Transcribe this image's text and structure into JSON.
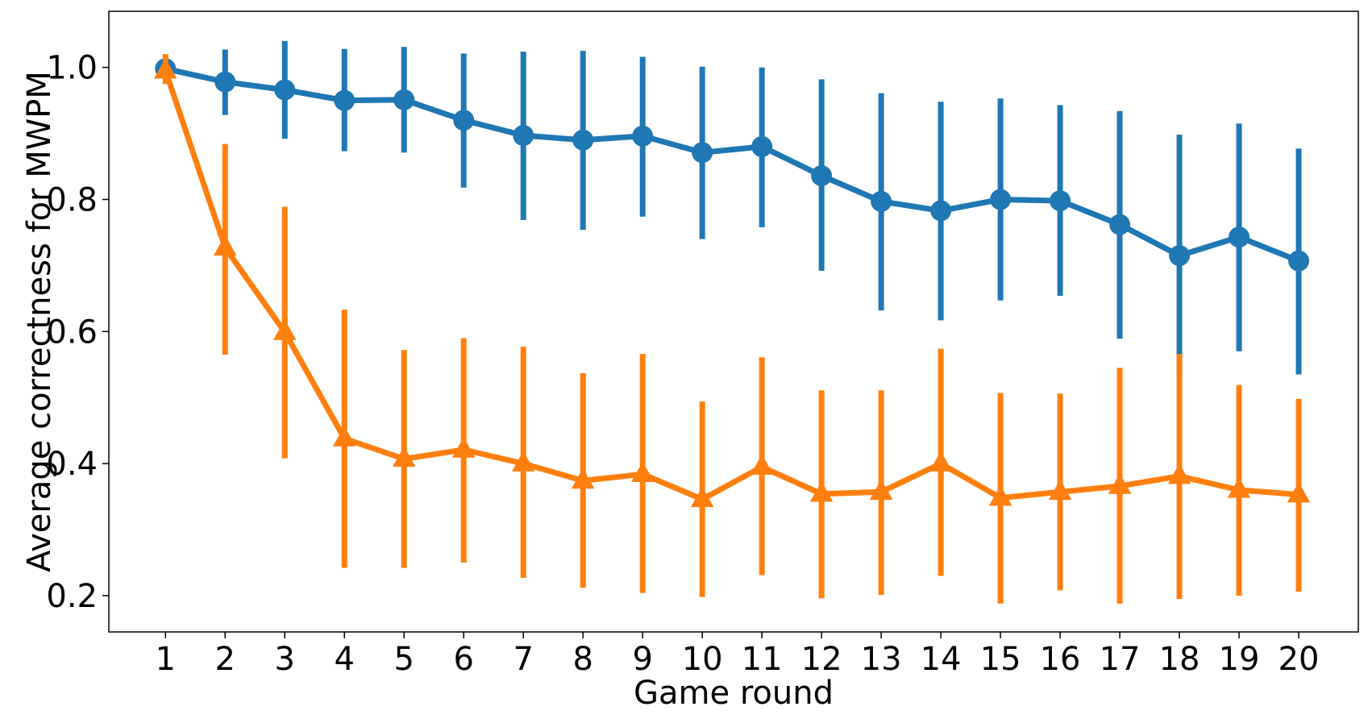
{
  "chart_data": {
    "type": "line",
    "title": "",
    "xlabel": "Game round",
    "ylabel": "Average correctness for MWPM",
    "x": [
      1,
      2,
      3,
      4,
      5,
      6,
      7,
      8,
      9,
      10,
      11,
      12,
      13,
      14,
      15,
      16,
      17,
      18,
      19,
      20
    ],
    "xlim": [
      0.05,
      21.0
    ],
    "ylim": [
      0.145,
      1.085
    ],
    "yticks": [
      0.2,
      0.4,
      0.6,
      0.8,
      1.0
    ],
    "ytick_labels": [
      "0.2",
      "0.4",
      "0.6",
      "0.8",
      "1.0"
    ],
    "grid": false,
    "legend": "none",
    "series": [
      {
        "color": "#1f77b4",
        "marker": "circle",
        "values": [
          0.998,
          0.978,
          0.966,
          0.95,
          0.951,
          0.92,
          0.897,
          0.89,
          0.896,
          0.871,
          0.88,
          0.836,
          0.797,
          0.783,
          0.8,
          0.798,
          0.762,
          0.715,
          0.743,
          0.707
        ],
        "err_low": [
          0.998,
          0.928,
          0.892,
          0.873,
          0.871,
          0.818,
          0.769,
          0.754,
          0.774,
          0.74,
          0.758,
          0.692,
          0.632,
          0.617,
          0.647,
          0.654,
          0.589,
          0.539,
          0.57,
          0.535
        ],
        "err_high": [
          0.998,
          1.027,
          1.04,
          1.028,
          1.031,
          1.021,
          1.024,
          1.025,
          1.016,
          1.001,
          1.0,
          0.982,
          0.961,
          0.948,
          0.953,
          0.943,
          0.934,
          0.898,
          0.915,
          0.877
        ]
      },
      {
        "color": "#ff7f0e",
        "marker": "triangle",
        "values": [
          0.995,
          0.727,
          0.599,
          0.438,
          0.407,
          0.421,
          0.4,
          0.374,
          0.384,
          0.346,
          0.395,
          0.354,
          0.357,
          0.4,
          0.348,
          0.357,
          0.366,
          0.381,
          0.36,
          0.353
        ],
        "err_low": [
          0.975,
          0.565,
          0.408,
          0.242,
          0.242,
          0.25,
          0.227,
          0.212,
          0.204,
          0.198,
          0.231,
          0.196,
          0.201,
          0.23,
          0.188,
          0.208,
          0.188,
          0.195,
          0.2,
          0.206
        ],
        "err_high": [
          1.02,
          0.884,
          0.789,
          0.633,
          0.572,
          0.59,
          0.577,
          0.537,
          0.566,
          0.494,
          0.561,
          0.511,
          0.511,
          0.574,
          0.507,
          0.506,
          0.545,
          0.566,
          0.519,
          0.498
        ]
      }
    ]
  }
}
